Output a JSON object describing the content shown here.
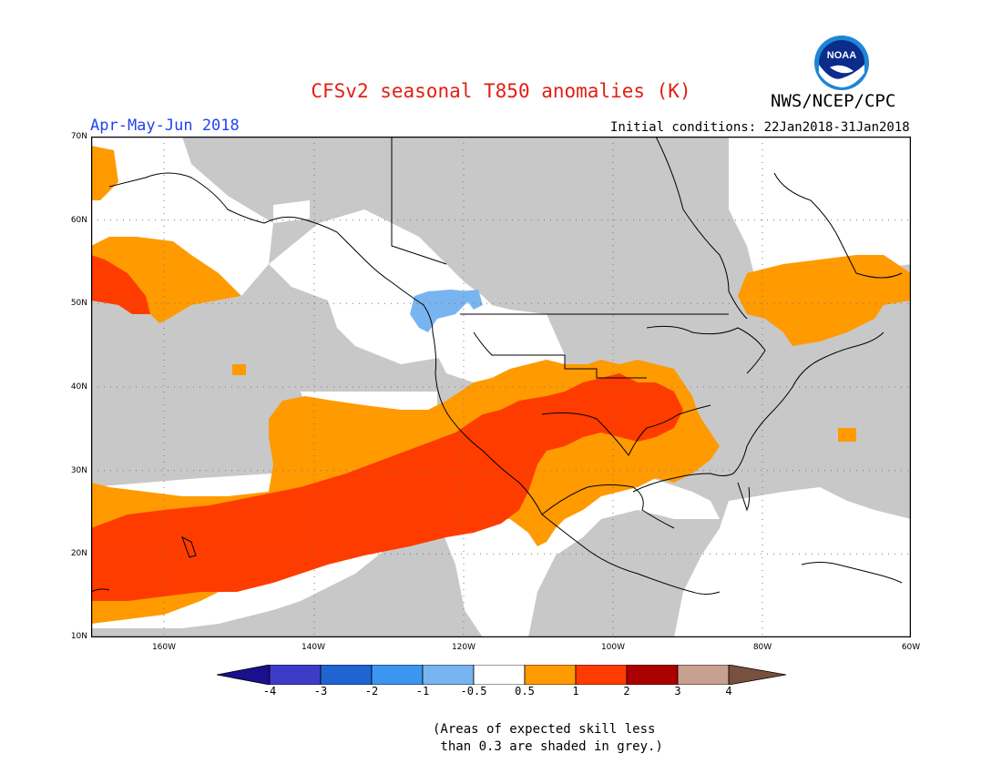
{
  "title": "CFSv2 seasonal T850 anomalies (K)",
  "agency": "NWS/NCEP/CPC",
  "logo_text": "NOAA",
  "season": "Apr-May-Jun 2018",
  "initial_conditions": "Initial conditions: 22Jan2018-31Jan2018",
  "lat_labels": [
    "70N",
    "60N",
    "50N",
    "40N",
    "30N",
    "20N",
    "10N"
  ],
  "lon_labels": [
    "160W",
    "140W",
    "120W",
    "100W",
    "80W",
    "60W"
  ],
  "colorbar": {
    "labels": [
      "-4",
      "-3",
      "-2",
      "-1",
      "-0.5",
      "0.5",
      "1",
      "2",
      "3",
      "4"
    ],
    "colors": [
      "#1a0f8c",
      "#3c3cc8",
      "#2064d2",
      "#3c96f0",
      "#78b4f0",
      "#ffffff",
      "#ff9a00",
      "#ff3c00",
      "#aa0000",
      "#c8a090",
      "#785040"
    ]
  },
  "legend_colors": {
    "skill_grey": "#c8c8c8",
    "anomaly_0_5_to_1": "#ff9a00",
    "anomaly_1_to_2": "#ff3c00",
    "anomaly_neg_1_to_neg_0_5": "#78b4f0"
  },
  "note": [
    "(Areas of expected skill less",
    " than 0.3 are shaded in grey.)"
  ]
}
